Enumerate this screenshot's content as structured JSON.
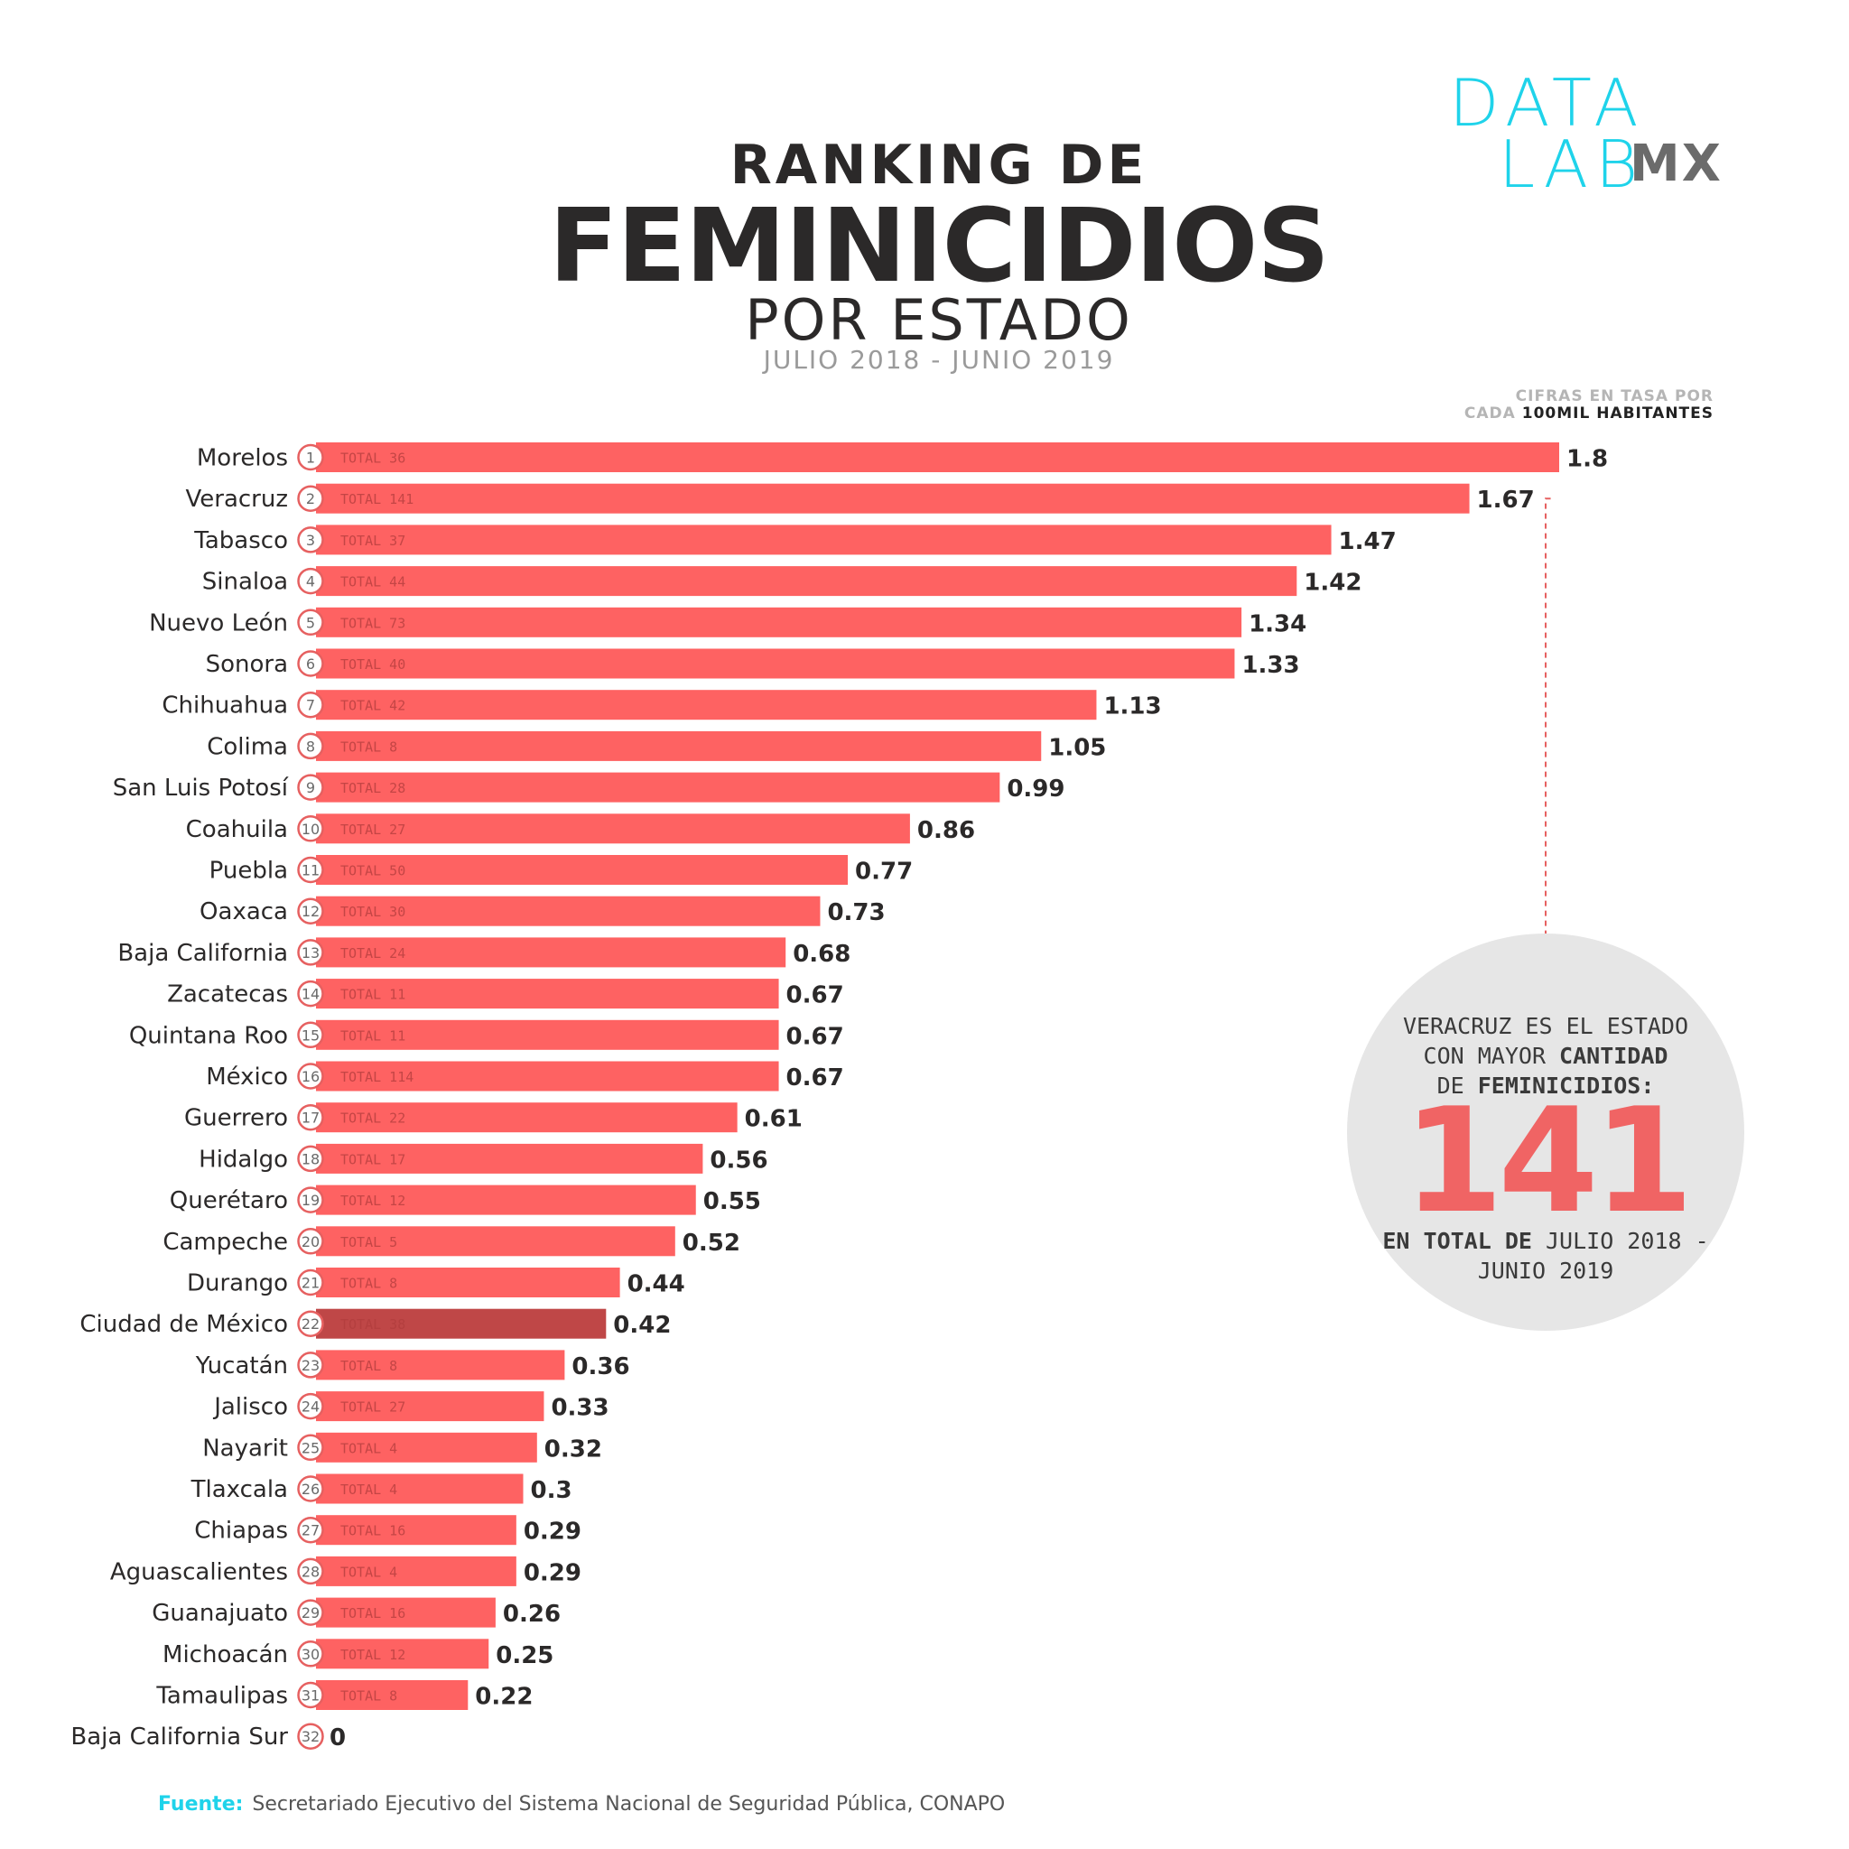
{
  "logo": {
    "line1": "DATA",
    "line2": "LAB",
    "suffix": "MX"
  },
  "header": {
    "line1": "RANKING DE",
    "line2": "FEMINICIDIOS",
    "line3": "POR ESTADO",
    "period": "JULIO 2018 - JUNIO 2019"
  },
  "units_note": {
    "line1": "CIFRAS EN TASA POR",
    "line2_light": "CADA",
    "line2_bold": "100MIL HABITANTES"
  },
  "colors": {
    "bar": "#fe6262",
    "highlight_bar": "#bf4747",
    "accent": "#1fd3ea",
    "callout_number": "#f06464"
  },
  "chart_data": {
    "type": "bar",
    "orientation": "horizontal",
    "xlim": [
      0,
      1.8
    ],
    "grid": false,
    "highlight": "Ciudad de México",
    "categories": [
      "Morelos",
      "Veracruz",
      "Tabasco",
      "Sinaloa",
      "Nuevo León",
      "Sonora",
      "Chihuahua",
      "Colima",
      "San Luis Potosí",
      "Coahuila",
      "Puebla",
      "Oaxaca",
      "Baja California",
      "Zacatecas",
      "Quintana Roo",
      "México",
      "Guerrero",
      "Hidalgo",
      "Querétaro",
      "Campeche",
      "Durango",
      "Ciudad de México",
      "Yucatán",
      "Jalisco",
      "Nayarit",
      "Tlaxcala",
      "Chiapas",
      "Aguascalientes",
      "Guanajuato",
      "Michoacán",
      "Tamaulipas",
      "Baja California Sur"
    ],
    "ranks": [
      "1",
      "2",
      "3",
      "4",
      "5",
      "6",
      "7",
      "8",
      "9",
      "10",
      "11",
      "12",
      "13",
      "14",
      "15",
      "16",
      "17",
      "18",
      "19",
      "20",
      "21",
      "22",
      "23",
      "24",
      "25",
      "26",
      "27",
      "28",
      "29",
      "30",
      "31",
      "32"
    ],
    "values": [
      1.8,
      1.67,
      1.47,
      1.42,
      1.34,
      1.33,
      1.13,
      1.05,
      0.99,
      0.86,
      0.77,
      0.73,
      0.68,
      0.67,
      0.67,
      0.67,
      0.61,
      0.56,
      0.55,
      0.52,
      0.44,
      0.42,
      0.36,
      0.33,
      0.32,
      0.3,
      0.29,
      0.29,
      0.26,
      0.25,
      0.22,
      0
    ],
    "value_labels": [
      "1.8",
      "1.67",
      "1.47",
      "1.42",
      "1.34",
      "1.33",
      "1.13",
      "1.05",
      "0.99",
      "0.86",
      "0.77",
      "0.73",
      "0.68",
      "0.67",
      "0.67",
      "0.67",
      "0.61",
      "0.56",
      "0.55",
      "0.52",
      "0.44",
      "0.42",
      "0.36",
      "0.33",
      "0.32",
      "0.3",
      "0.29",
      "0.29",
      "0.26",
      "0.25",
      "0.22",
      "0"
    ],
    "totals": [
      "TOTAL 36",
      "TOTAL 141",
      "TOTAL 37",
      "TOTAL 44",
      "TOTAL 73",
      "TOTAL 40",
      "TOTAL 42",
      "TOTAL 8",
      "TOTAL 28",
      "TOTAL 27",
      "TOTAL 50",
      "TOTAL 30",
      "TOTAL 24",
      "TOTAL 11",
      "TOTAL 11",
      "TOTAL 114",
      "TOTAL 22",
      "TOTAL 17",
      "TOTAL 12",
      "TOTAL 5",
      "TOTAL 8",
      "TOTAL 38",
      "TOTAL 8",
      "TOTAL 27",
      "TOTAL 4",
      "TOTAL 4",
      "TOTAL 16",
      "TOTAL 4",
      "TOTAL 16",
      "TOTAL 12",
      "TOTAL 8",
      ""
    ]
  },
  "callout": {
    "line1": "VERACRUZ ES EL ESTADO",
    "line2_a": "CON MAYOR ",
    "line2_b": "CANTIDAD",
    "line3_a": "DE ",
    "line3_b": "FEMINICIDIOS:",
    "number": "141",
    "line4_b": "EN TOTAL DE",
    "line4_a": " JULIO 2018 -",
    "line5": "JUNIO 2019"
  },
  "source": {
    "label": "Fuente:",
    "text": "Secretariado Ejecutivo del Sistema Nacional de Seguridad Pública, CONAPO"
  }
}
